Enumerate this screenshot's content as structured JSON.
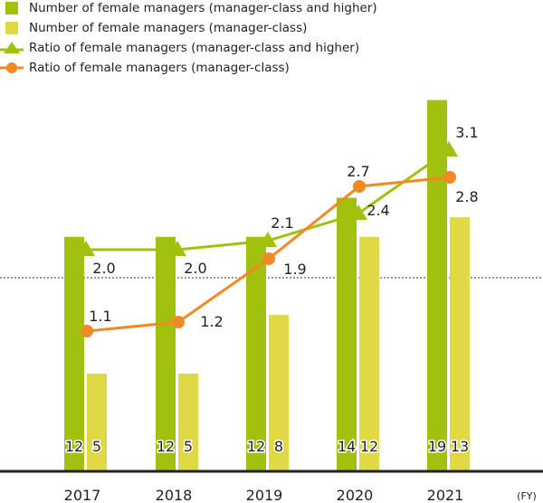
{
  "chart_data": {
    "type": "bar",
    "categories": [
      "2017",
      "2018",
      "2019",
      "2020",
      "2021"
    ],
    "x_unit": "(FY)",
    "series": [
      {
        "name": "Number of female managers (manager-class and higher)",
        "type": "bar",
        "color": "#a2c10f",
        "values": [
          12,
          12,
          12,
          14,
          19
        ]
      },
      {
        "name": "Number of female managers (manager-class)",
        "type": "bar",
        "color": "#e0d845",
        "values": [
          5,
          5,
          8,
          12,
          13
        ]
      },
      {
        "name": "Ratio of female managers (manager-class and higher)",
        "type": "line",
        "marker": "triangle",
        "color": "#a2c10f",
        "values": [
          2.0,
          2.0,
          2.1,
          2.4,
          3.1
        ],
        "labels": [
          "2.0",
          "2.0",
          "2.1",
          "2.4",
          "3.1"
        ]
      },
      {
        "name": "Ratio of female managers (manager-class)",
        "type": "line",
        "marker": "circle",
        "color": "#f08a24",
        "values": [
          1.1,
          1.2,
          1.9,
          2.7,
          2.8
        ],
        "labels": [
          "1.1",
          "1.2",
          "1.9",
          "2.7",
          "2.8"
        ]
      }
    ],
    "legend": "top-left",
    "grid": false
  }
}
